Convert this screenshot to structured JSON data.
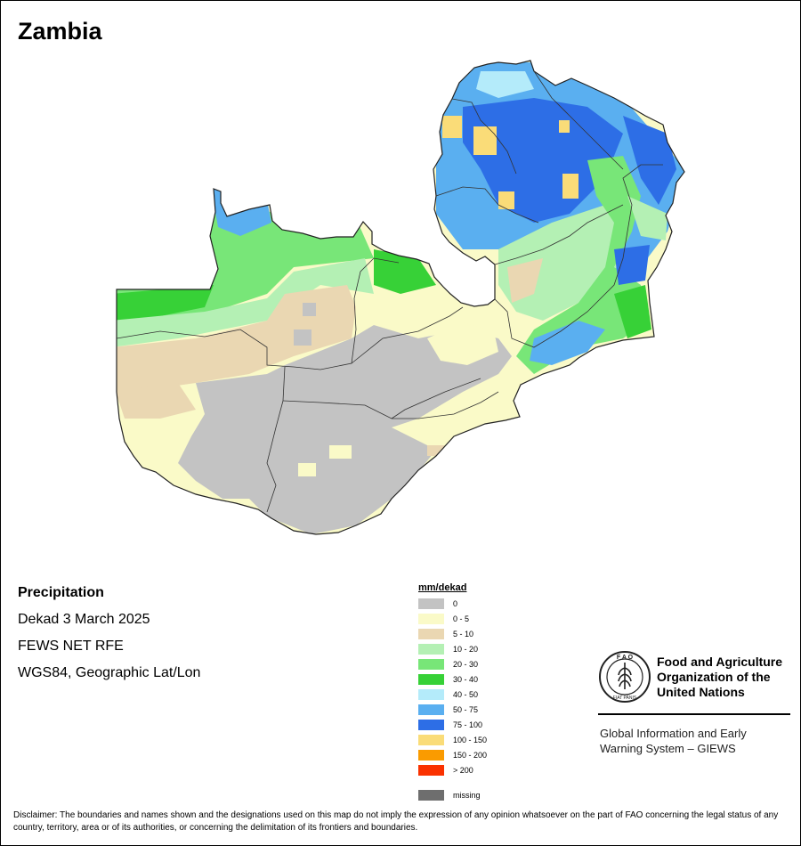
{
  "title": "Zambia",
  "info": {
    "variable": "Precipitation",
    "period": "Dekad 3 March 2025",
    "source": "FEWS NET RFE",
    "projection": "WGS84, Geographic Lat/Lon"
  },
  "legend": {
    "title": "mm/dekad",
    "items": [
      {
        "label": "0",
        "color": "#c3c3c3"
      },
      {
        "label": "0 - 5",
        "color": "#fafac8"
      },
      {
        "label": "5 - 10",
        "color": "#ead7b2"
      },
      {
        "label": "10 - 20",
        "color": "#b4f0b4"
      },
      {
        "label": "20 - 30",
        "color": "#78e678"
      },
      {
        "label": "30 - 40",
        "color": "#37d137"
      },
      {
        "label": "40 - 50",
        "color": "#b4ebfa"
      },
      {
        "label": "50 - 75",
        "color": "#5aaff0"
      },
      {
        "label": "75 - 100",
        "color": "#2d6ee6"
      },
      {
        "label": "100 - 150",
        "color": "#fadc78"
      },
      {
        "label": "150 - 200",
        "color": "#fa9b00"
      },
      {
        "label": "> 200",
        "color": "#fa3200"
      }
    ],
    "missing": {
      "label": "missing",
      "color": "#6e6e6e"
    }
  },
  "fao": {
    "name": "Food and Agriculture\nOrganization of the\nUnited Nations",
    "giews": "Global Information and Early\nWarning System – GIEWS",
    "logo_text_top": "F A O",
    "logo_text_bottom": "FIAT PANIS"
  },
  "disclaimer": "Disclaimer: The boundaries and names shown and the designations used on this map do not imply the expression of any opinion whatsoever on the part of FAO concerning the legal status of any country, territory, area or of its authorities, or concerning the delimitation of its frontiers and boundaries."
}
